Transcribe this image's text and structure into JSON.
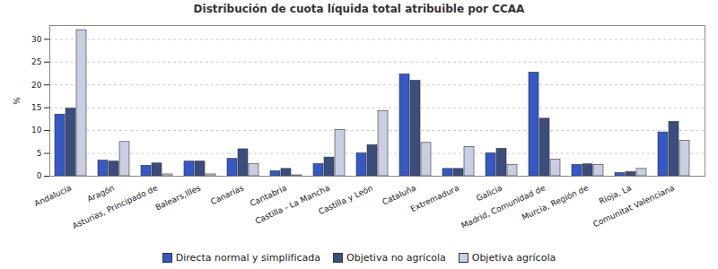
{
  "chart_data": {
    "type": "bar",
    "title": "Distribución de cuota líquida total atribuible por CCAA",
    "y_label": "%",
    "categories": [
      "Andalucía",
      "Aragón",
      "Asturias, Principado de",
      "Balears,Illes",
      "Canarias",
      "Cantabria",
      "Castilla - La Mancha",
      "Castilla y León",
      "Cataluña",
      "Extremadura",
      "Galicia",
      "Madrid, Comunidad de",
      "Murcia, Región de",
      "Rioja, La",
      "Comunitat Valenciana"
    ],
    "series": [
      {
        "name": "Directa normal y simplificada",
        "color": "#3558c4",
        "values": [
          13.5,
          3.4,
          2.3,
          3.2,
          3.8,
          1.1,
          2.7,
          5.0,
          22.3,
          1.6,
          5.0,
          22.7,
          2.5,
          0.7,
          9.6
        ]
      },
      {
        "name": "Objetiva no agrícola",
        "color": "#3b4d7c",
        "values": [
          14.8,
          3.2,
          2.8,
          3.2,
          5.9,
          1.6,
          4.1,
          6.8,
          20.9,
          1.6,
          6.0,
          12.6,
          2.6,
          0.9,
          11.9
        ]
      },
      {
        "name": "Objetiva agrícola",
        "color": "#c9cee2",
        "values": [
          32.0,
          7.5,
          0.4,
          0.4,
          2.7,
          0.2,
          10.1,
          14.3,
          7.3,
          6.4,
          2.5,
          3.6,
          2.5,
          1.6,
          7.8
        ]
      }
    ],
    "ylim": [
      0,
      33
    ],
    "yticks": [
      0,
      5,
      10,
      15,
      20,
      25,
      30
    ],
    "grid": true,
    "legend": "bottom"
  }
}
